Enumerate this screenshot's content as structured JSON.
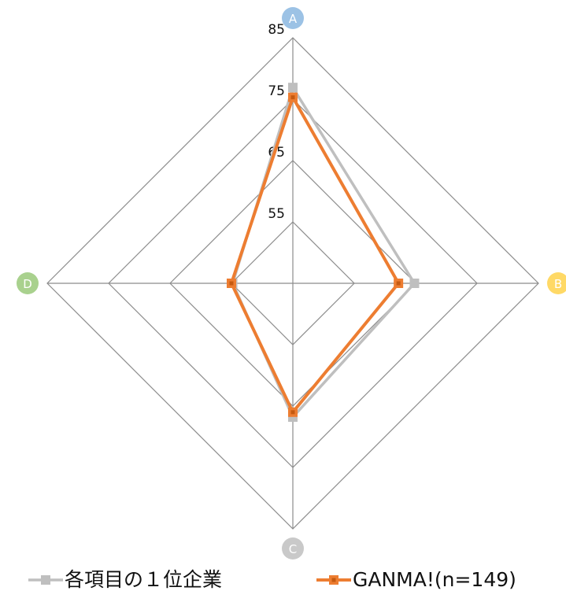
{
  "chart_data": {
    "type": "radar",
    "title": "",
    "axes": [
      "A",
      "B",
      "C",
      "D"
    ],
    "axis_colors": [
      "#9cc2e5",
      "#ffd966",
      "#c9c9c9",
      "#a9d18e"
    ],
    "range": [
      45,
      85
    ],
    "ticks": [
      55,
      65,
      75,
      85
    ],
    "tick_labels": [
      "55",
      "65",
      "75",
      "85"
    ],
    "grid": true,
    "legend_position": "bottom",
    "series": [
      {
        "name": "各項目の１位企業",
        "color": "#bfbfbf",
        "values": [
          76.9,
          64.8,
          66.8,
          54.8
        ]
      },
      {
        "name": "GANMA!(n=149)",
        "color": "#ed7d31",
        "values": [
          75.3,
          62.2,
          66.0,
          55.0
        ]
      }
    ]
  }
}
